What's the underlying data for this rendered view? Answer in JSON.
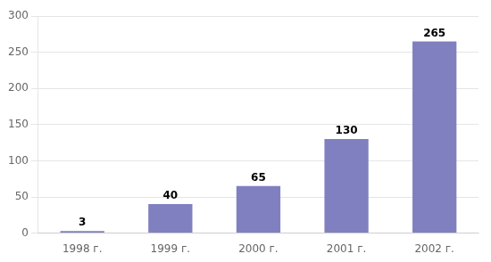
{
  "chart_data": {
    "type": "bar",
    "categories": [
      "1998 г.",
      "1999 г.",
      "2000 г.",
      "2001 г.",
      "2002 г."
    ],
    "values": [
      3,
      40,
      65,
      130,
      265
    ],
    "color": "#8080c0",
    "ylim": [
      0,
      300
    ],
    "yticks": [
      0,
      50,
      100,
      150,
      200,
      250,
      300
    ],
    "grid": true,
    "data_labels": true
  }
}
